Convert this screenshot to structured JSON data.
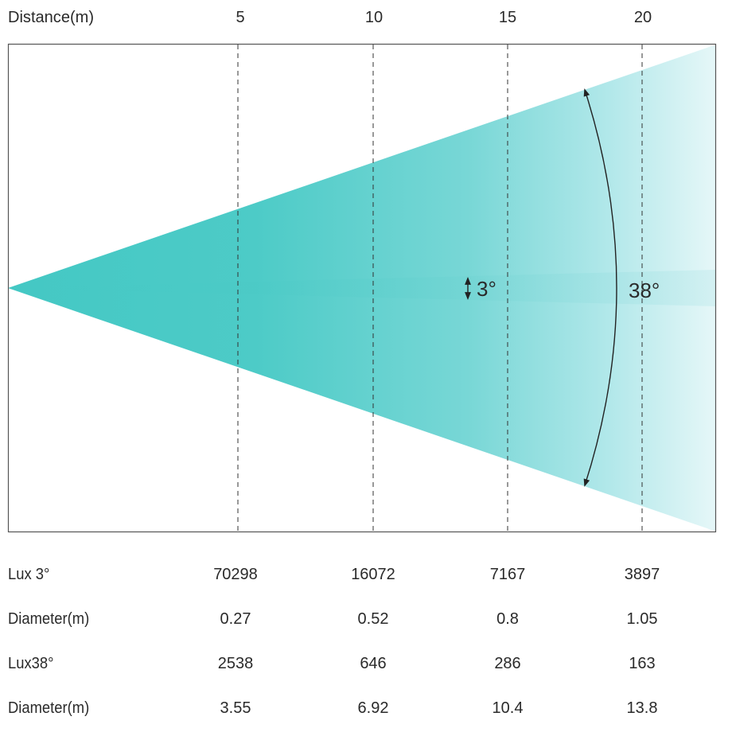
{
  "axis": {
    "label": "Distance(m)",
    "ticks": [
      "5",
      "10",
      "15",
      "20"
    ]
  },
  "angles": {
    "narrow": "3°",
    "wide": "38°"
  },
  "colors": {
    "beam": "#44c8c4",
    "beam_fade": "#e6f7f8",
    "frame": "#555555",
    "guide": "#333333",
    "text": "#2a2a2a"
  },
  "table": {
    "rows": [
      {
        "label": "Lux 3°",
        "values": [
          "70298",
          "16072",
          "7167",
          "3897"
        ]
      },
      {
        "label": "Diameter(m)",
        "values": [
          "0.27",
          "0.52",
          "0.8",
          "1.05"
        ]
      },
      {
        "label": "Lux38°",
        "values": [
          "2538",
          "646",
          "286",
          "163"
        ]
      },
      {
        "label": "Diameter(m)",
        "values": [
          "3.55",
          "6.92",
          "10.4",
          "13.8"
        ]
      }
    ]
  }
}
